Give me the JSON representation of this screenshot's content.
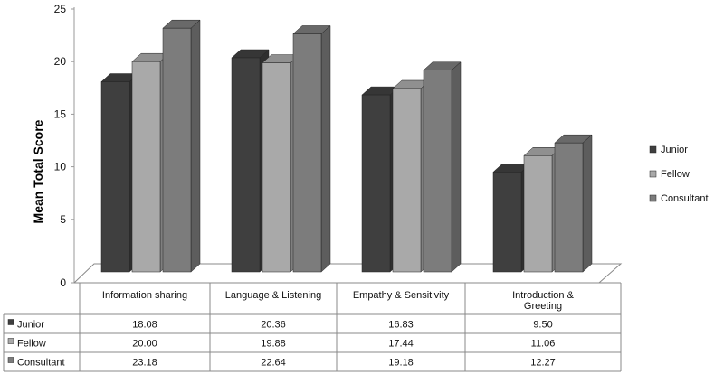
{
  "chart_data": {
    "type": "bar",
    "ylabel": "Mean Total Score",
    "ylim": [
      0,
      25
    ],
    "yticks": [
      0,
      5,
      10,
      15,
      20,
      25
    ],
    "categories": [
      [
        "Information sharing"
      ],
      [
        "Language & Listening"
      ],
      [
        "Empathy & Sensitivity"
      ],
      [
        "Introduction &",
        "Greeting"
      ]
    ],
    "series": [
      {
        "name": "Junior",
        "color": "#3f3f3f",
        "values": [
          18.08,
          20.36,
          16.83,
          9.5
        ]
      },
      {
        "name": "Fellow",
        "color": "#a9a9a9",
        "values": [
          20.0,
          19.88,
          17.44,
          11.06
        ]
      },
      {
        "name": "Consultant",
        "color": "#7c7c7c",
        "values": [
          23.18,
          22.64,
          19.18,
          12.27
        ]
      }
    ],
    "table": {
      "Junior": [
        "18.08",
        "20.36",
        "16.83",
        "9.50"
      ],
      "Fellow": [
        "20.00",
        "19.88",
        "17.44",
        "11.06"
      ],
      "Consultant": [
        "23.18",
        "22.64",
        "19.18",
        "12.27"
      ]
    },
    "legend_position": "right",
    "grid": false
  }
}
